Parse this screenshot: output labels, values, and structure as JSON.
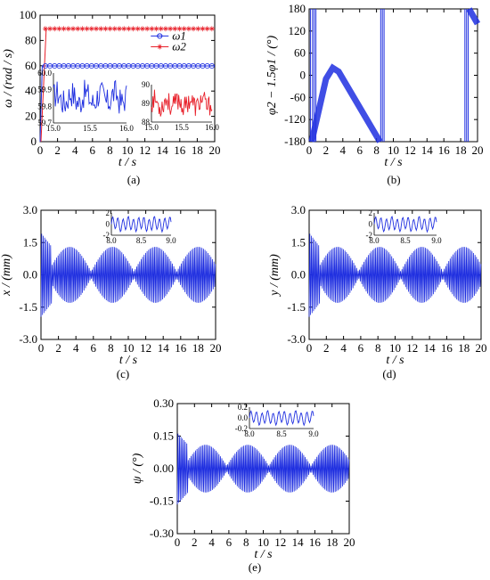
{
  "figure": {
    "panel_labels": [
      "(a)",
      "(b)",
      "(c)",
      "(d)",
      "(e)"
    ]
  },
  "colors": {
    "blue": "#1f2fe0",
    "red": "#e8202a",
    "axis": "#000000"
  },
  "chart_data": [
    {
      "id": "a",
      "type": "line",
      "ylabel": "ω / (rad / s)",
      "xlabel": "t / s",
      "xlim": [
        0,
        20
      ],
      "ylim": [
        0,
        100
      ],
      "xticks": [
        0,
        2,
        4,
        6,
        8,
        10,
        12,
        14,
        16,
        18,
        20
      ],
      "yticks": [
        0,
        20,
        40,
        60,
        80,
        100
      ],
      "series": [
        {
          "name": "ω1",
          "color": "#1f2fe0",
          "marker": "circle",
          "steady_value": 59.85
        },
        {
          "name": "ω2",
          "color": "#e8202a",
          "marker": "star",
          "steady_value": 89.3
        }
      ],
      "insets": [
        {
          "series": "ω1",
          "xlim": [
            15.0,
            16.0
          ],
          "ylim": [
            59.7,
            60.0
          ],
          "xticks": [
            "15.0",
            "15.5",
            "16.0"
          ],
          "yticks": [
            "59.7",
            "59.8",
            "59.9",
            "60.0"
          ]
        },
        {
          "series": "ω2",
          "xlim": [
            15.0,
            16.0
          ],
          "ylim": [
            88,
            90
          ],
          "xticks": [
            "15.0",
            "15.5",
            "16.0"
          ],
          "yticks": [
            "88",
            "89",
            "90"
          ]
        }
      ]
    },
    {
      "id": "b",
      "type": "line",
      "ylabel": "φ2 − 1.5φ1 / (°)",
      "xlabel": "t / s",
      "xlim": [
        0,
        20
      ],
      "ylim": [
        -180,
        180
      ],
      "xticks": [
        0,
        2,
        4,
        6,
        8,
        10,
        12,
        14,
        16,
        18,
        20
      ],
      "yticks": [
        -180,
        -120,
        -60,
        0,
        60,
        120,
        180
      ],
      "points": [
        [
          0.3,
          -180
        ],
        [
          2.0,
          -10
        ],
        [
          2.8,
          20
        ],
        [
          3.5,
          10
        ],
        [
          8.4,
          -180
        ],
        [
          9.0,
          180
        ],
        [
          18.4,
          -180
        ],
        [
          19.0,
          180
        ],
        [
          20.0,
          140
        ]
      ]
    },
    {
      "id": "c",
      "type": "line",
      "ylabel": "x / (mm)",
      "xlabel": "t / s",
      "xlim": [
        0,
        20
      ],
      "ylim": [
        -3.0,
        3.0
      ],
      "xticks": [
        0,
        2,
        4,
        6,
        8,
        10,
        12,
        14,
        16,
        18,
        20
      ],
      "yticks": [
        "-3.0",
        "-1.5",
        "0.0",
        "1.5",
        "3.0"
      ],
      "envelope": {
        "peak": 1.3,
        "beat_nodes_s": [
          3.3,
          8.2,
          13.1,
          18.0
        ]
      },
      "inset": {
        "xlim": [
          8.0,
          9.0
        ],
        "ylim": [
          -2,
          2
        ],
        "xticks": [
          "8.0",
          "8.5",
          "9.0"
        ],
        "yticks": [
          "-2",
          "0",
          "2"
        ]
      }
    },
    {
      "id": "d",
      "type": "line",
      "ylabel": "y / (mm)",
      "xlabel": "t / s",
      "xlim": [
        0,
        20
      ],
      "ylim": [
        -3.0,
        3.0
      ],
      "xticks": [
        0,
        2,
        4,
        6,
        8,
        10,
        12,
        14,
        16,
        18,
        20
      ],
      "yticks": [
        "-3.0",
        "-1.5",
        "0.0",
        "1.5",
        "3.0"
      ],
      "envelope": {
        "peak": 1.3,
        "beat_nodes_s": [
          3.3,
          8.2,
          13.1,
          18.0
        ]
      },
      "inset": {
        "xlim": [
          8.0,
          9.0
        ],
        "ylim": [
          -2,
          2
        ],
        "xticks": [
          "8.0",
          "8.5",
          "9.0"
        ],
        "yticks": [
          "-2",
          "0",
          "2"
        ]
      }
    },
    {
      "id": "e",
      "type": "line",
      "ylabel": "ψ / (°)",
      "xlabel": "t / s",
      "xlim": [
        0,
        20
      ],
      "ylim": [
        -0.3,
        0.3
      ],
      "xticks": [
        0,
        2,
        4,
        6,
        8,
        10,
        12,
        14,
        16,
        18,
        20
      ],
      "yticks": [
        "-0.30",
        "-0.15",
        "0.00",
        "0.15",
        "0.30"
      ],
      "envelope": {
        "peak": 0.11,
        "beat_nodes_s": [
          3.3,
          8.2,
          13.1,
          18.0
        ]
      },
      "inset": {
        "xlim": [
          8.0,
          9.0
        ],
        "ylim": [
          -0.2,
          0.2
        ],
        "xticks": [
          "8.0",
          "8.5",
          "9.0"
        ],
        "yticks": [
          "-0.2",
          "0.0",
          "0.2"
        ]
      }
    }
  ]
}
